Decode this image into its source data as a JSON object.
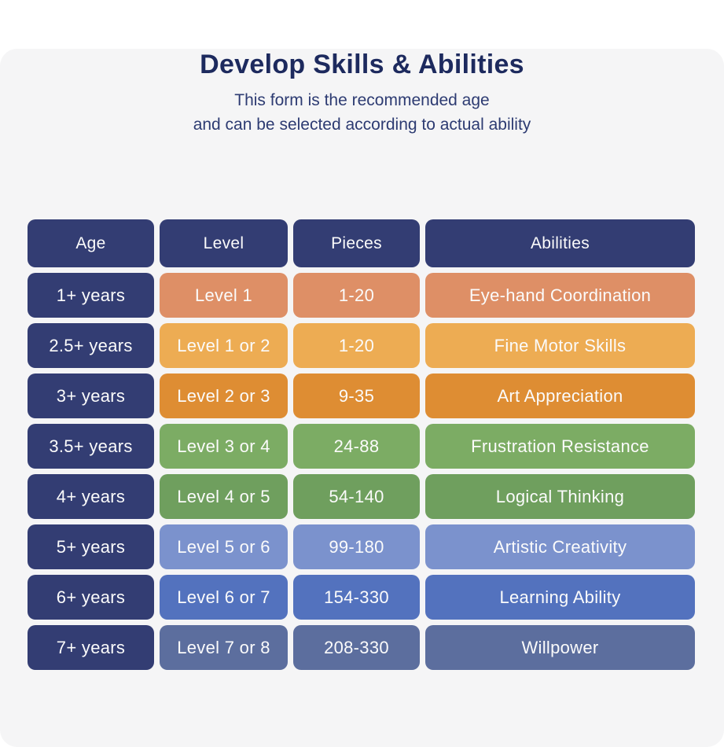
{
  "header": {
    "title": "Develop Skills & Abilities",
    "subtitle_line1": "This form is the recommended age",
    "subtitle_line2": "and can be  selected according to actual ability"
  },
  "chart_data": {
    "type": "table",
    "title": "Develop Skills & Abilities",
    "columns": [
      "Age",
      "Level",
      "Pieces",
      "Abilities"
    ],
    "rows": [
      {
        "age": "1+ years",
        "level": "Level 1",
        "pieces": "1-20",
        "ability": "Eye-hand Coordination",
        "color": "#de8f66"
      },
      {
        "age": "2.5+ years",
        "level": "Level 1 or 2",
        "pieces": "1-20",
        "ability": "Fine Motor Skills",
        "color": "#edac53"
      },
      {
        "age": "3+ years",
        "level": "Level 2 or 3",
        "pieces": "9-35",
        "ability": "Art Appreciation",
        "color": "#de8d33"
      },
      {
        "age": "3.5+ years",
        "level": "Level 3 or 4",
        "pieces": "24-88",
        "ability": "Frustration Resistance",
        "color": "#7cac64"
      },
      {
        "age": "4+ years",
        "level": "Level 4 or 5",
        "pieces": "54-140",
        "ability": "Logical Thinking",
        "color": "#6f9f5e"
      },
      {
        "age": "5+ years",
        "level": "Level 5 or 6",
        "pieces": "99-180",
        "ability": "Artistic Creativity",
        "color": "#7b92cd"
      },
      {
        "age": "6+ years",
        "level": "Level 6 or 7",
        "pieces": "154-330",
        "ability": "Learning Ability",
        "color": "#5372be"
      },
      {
        "age": "7+ years",
        "level": "Level 7 or 8",
        "pieces": "208-330",
        "ability": "Willpower",
        "color": "#5c6e9e"
      }
    ]
  },
  "colors": {
    "background": "#f5f5f6",
    "header_navy": "#333d73",
    "cell_text": "#fbfbfb",
    "title_text": "#1d2a5e",
    "subtitle_text": "#2d3b72"
  }
}
